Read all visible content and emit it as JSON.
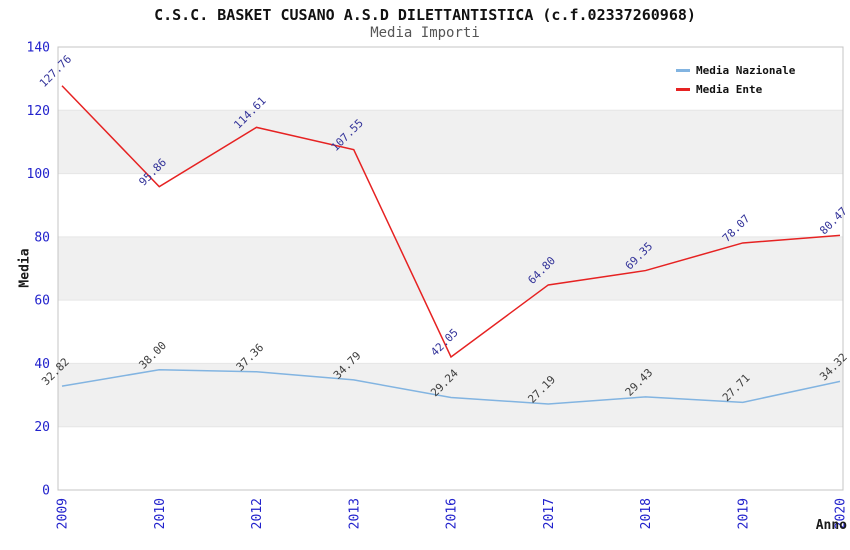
{
  "chart_data": {
    "type": "line",
    "title": "C.S.C. BASKET CUSANO A.S.D DILETTANTISTICA (c.f.02337260968)",
    "subtitle": "Media Importi",
    "xlabel": "Anno",
    "ylabel": "Media",
    "categories": [
      "2009",
      "2010",
      "2012",
      "2013",
      "2016",
      "2017",
      "2018",
      "2019",
      "2020"
    ],
    "series": [
      {
        "name": "Media Nazionale",
        "color": "#82b4e1",
        "label_color": "#3d3d3d",
        "values": [
          32.82,
          38.0,
          37.36,
          34.79,
          29.24,
          27.19,
          29.43,
          27.71,
          34.32
        ]
      },
      {
        "name": "Media Ente",
        "color": "#e62222",
        "label_color": "#333399",
        "values": [
          127.76,
          95.86,
          114.61,
          107.55,
          42.05,
          64.8,
          69.35,
          78.07,
          80.47
        ]
      }
    ],
    "ylim": [
      0,
      140
    ],
    "ytick_step": 20,
    "yticks": [
      0,
      20,
      40,
      60,
      80,
      100,
      120,
      140
    ],
    "grid": "horizontal-bands",
    "legend_position": "top-right",
    "data_label_decimals": 2
  },
  "colors": {
    "axis_tick_text": "#2222cc",
    "band_fill": "#f0f0f0",
    "grid_line": "#e6e6e6",
    "plot_border": "#c4c4c4",
    "title_text": "#111111",
    "subtitle_text": "#565656"
  }
}
